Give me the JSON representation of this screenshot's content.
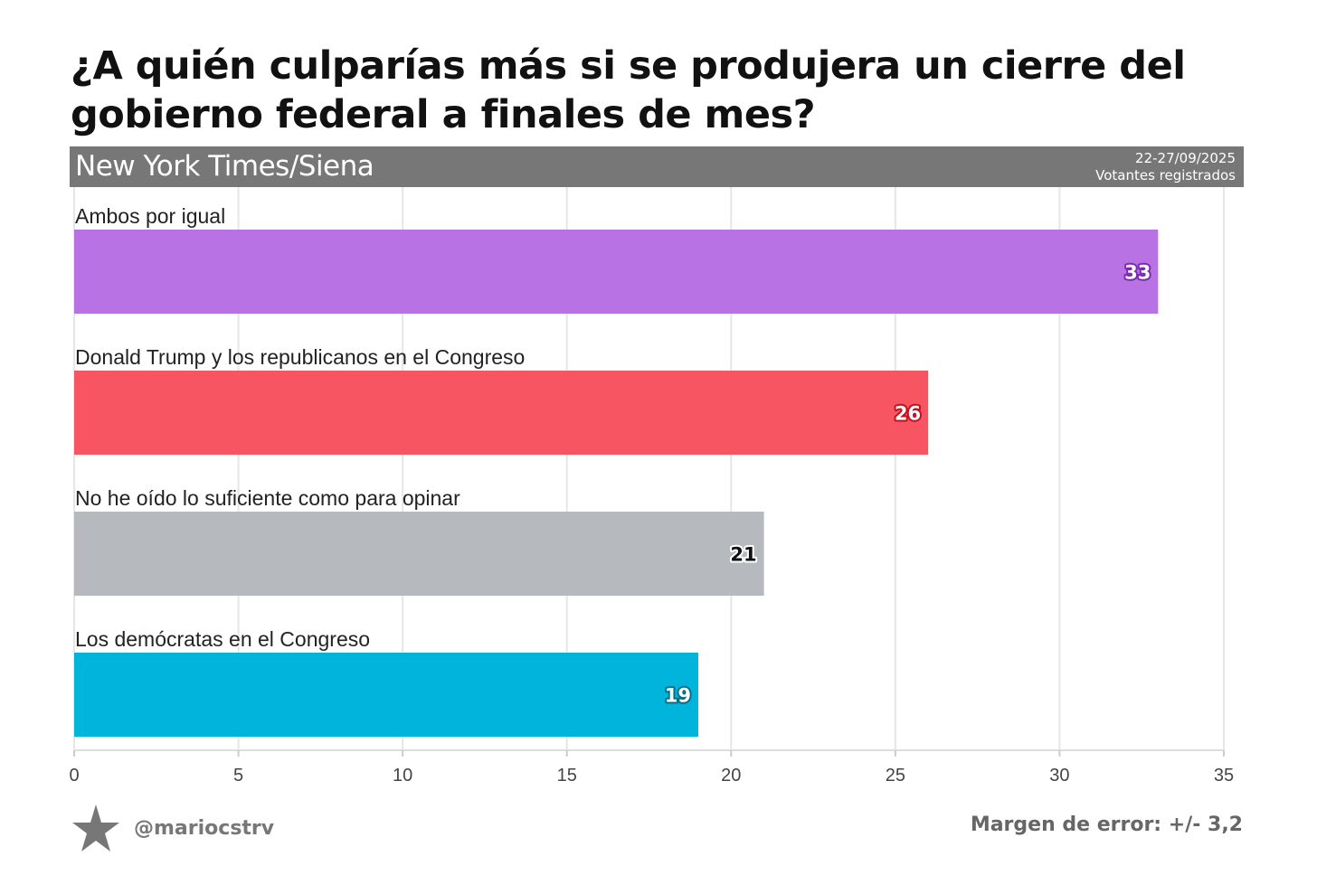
{
  "title": "¿A quién culparías más si se produjera un cierre del gobierno federal a finales de mes?",
  "source": {
    "name": "New York Times/Siena",
    "dates": "22-27/09/2025",
    "population": "Votantes registrados"
  },
  "footer": {
    "handle": "@mariocstrv",
    "margin_of_error": "Margen de error: +/- 3,2"
  },
  "colors": {
    "band": "#777777",
    "grid": "#e6e6e6",
    "axis": "#dddddd"
  },
  "chart_data": {
    "type": "bar",
    "orientation": "horizontal",
    "title": "¿A quién culparías más si se produjera un cierre del gobierno federal a finales de mes?",
    "xlabel": "",
    "ylabel": "",
    "xlim": [
      0,
      35
    ],
    "ticks": [
      0,
      5,
      10,
      15,
      20,
      25,
      30,
      35
    ],
    "grid": true,
    "categories": [
      "Ambos por igual",
      "Donald Trump y los republicanos en el Congreso",
      "No he oído lo suficiente como para opinar",
      "Los demócratas en el Congreso"
    ],
    "values": [
      33,
      26,
      21,
      19
    ],
    "bar_colors": [
      "#b872e4",
      "#f65561",
      "#b6b9bd",
      "#00b4dc"
    ],
    "label_text_colors": [
      "#ffffff",
      "#ffffff",
      "#111111",
      "#ffffff"
    ],
    "label_stroke_colors": [
      "#7b2bb0",
      "#c4101f",
      "#ffffff",
      "#006f8a"
    ]
  }
}
